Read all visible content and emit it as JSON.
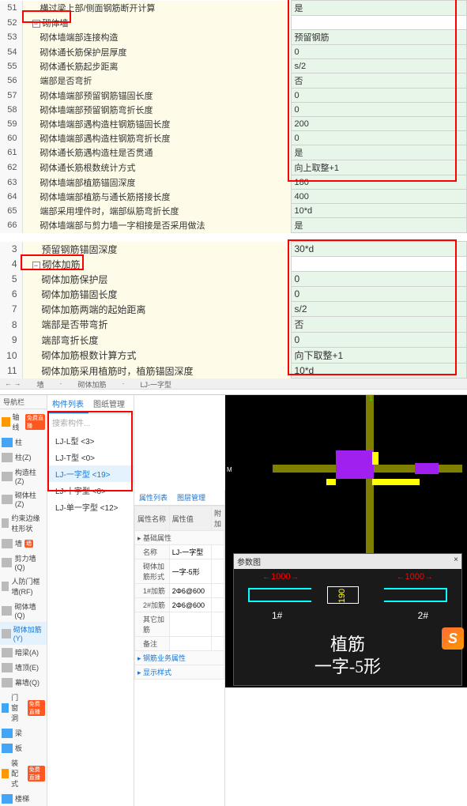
{
  "table1": {
    "title": "砌体墙",
    "rows": [
      {
        "n": "51",
        "l": "横过梁上部/侧面钢筋断开计算",
        "v": "是"
      },
      {
        "n": "52",
        "l": "砌体墙",
        "v": "",
        "hdr": true
      },
      {
        "n": "53",
        "l": "砌体墙端部连接构造",
        "v": "预留钢筋"
      },
      {
        "n": "54",
        "l": "砌体通长筋保护层厚度",
        "v": "0"
      },
      {
        "n": "55",
        "l": "砌体通长筋起步距离",
        "v": "s/2"
      },
      {
        "n": "56",
        "l": "端部是否弯折",
        "v": "否"
      },
      {
        "n": "57",
        "l": "砌体墙端部预留钢筋锚固长度",
        "v": "0"
      },
      {
        "n": "58",
        "l": "砌体墙端部预留钢筋弯折长度",
        "v": "0"
      },
      {
        "n": "59",
        "l": "砌体墙端部遇构造柱钢筋锚固长度",
        "v": "200"
      },
      {
        "n": "60",
        "l": "砌体墙端部遇构造柱钢筋弯折长度",
        "v": "0"
      },
      {
        "n": "61",
        "l": "砌体通长筋遇构造柱是否贯通",
        "v": "是"
      },
      {
        "n": "62",
        "l": "砌体通长筋根数统计方式",
        "v": "向上取整+1"
      },
      {
        "n": "63",
        "l": "砌体墙端部植筋锚固深度",
        "v": "180"
      },
      {
        "n": "64",
        "l": "砌体墙端部植筋与通长筋搭接长度",
        "v": "400"
      },
      {
        "n": "65",
        "l": "端部采用埋件时，端部纵筋弯折长度",
        "v": "10*d"
      },
      {
        "n": "66",
        "l": "砌体墙端部与剪力墙一字相接是否采用做法",
        "v": "是"
      }
    ]
  },
  "table2": {
    "title": "砌体加筋",
    "rows": [
      {
        "n": "3",
        "l": "预留钢筋锚固深度",
        "v": "30*d"
      },
      {
        "n": "4",
        "l": "砌体加筋",
        "v": "",
        "hdr": true
      },
      {
        "n": "5",
        "l": "砌体加筋保护层",
        "v": "0"
      },
      {
        "n": "6",
        "l": "砌体加筋锚固长度",
        "v": "0"
      },
      {
        "n": "7",
        "l": "砌体加筋两端的起始距离",
        "v": "s/2"
      },
      {
        "n": "8",
        "l": "端部是否带弯折",
        "v": "否"
      },
      {
        "n": "9",
        "l": "端部弯折长度",
        "v": "0"
      },
      {
        "n": "10",
        "l": "砌体加筋根数计算方式",
        "v": "向下取整+1"
      },
      {
        "n": "11",
        "l": "砌体加筋采用植筋时，植筋锚固深度",
        "v": "10*d"
      }
    ]
  },
  "topbar": {
    "a": "墙",
    "b": "砌体加筋",
    "c": "LJ-一字型"
  },
  "nav": {
    "hdr": "导航栏",
    "items": [
      {
        "l": "轴线",
        "c": "orange",
        "badge": "免费直播"
      },
      {
        "l": "柱",
        "c": "blue"
      },
      {
        "l": "柱(Z)",
        "c": "grey"
      },
      {
        "l": "构造柱(Z)",
        "c": "grey"
      },
      {
        "l": "砌体柱(Z)",
        "c": "grey"
      },
      {
        "l": "约束边缘柱形状",
        "c": "grey"
      },
      {
        "l": "墙",
        "c": "grey",
        "sel": true,
        "badge": "墙"
      },
      {
        "l": "剪力墙(Q)",
        "c": "grey"
      },
      {
        "l": "人防门框墙(RF)",
        "c": "grey"
      },
      {
        "l": "砌体墙(Q)",
        "c": "grey"
      },
      {
        "l": "砌体加筋(Y)",
        "c": "grey",
        "sel2": true
      },
      {
        "l": "暗梁(A)",
        "c": "grey"
      },
      {
        "l": "墙顶(E)",
        "c": "grey"
      },
      {
        "l": "幕墙(Q)",
        "c": "grey"
      },
      {
        "l": "门窗洞",
        "c": "blue",
        "badge": "免费直播"
      },
      {
        "l": "梁",
        "c": "blue"
      },
      {
        "l": "板",
        "c": "blue"
      },
      {
        "l": "装配式",
        "c": "orange",
        "badge": "免费直播"
      },
      {
        "l": "楼梯",
        "c": "blue"
      }
    ]
  },
  "mid": {
    "tabs": [
      "构件列表",
      "图纸管理"
    ],
    "search": "搜索构件...",
    "items": [
      {
        "l": "LJ-L型 <3>"
      },
      {
        "l": "LJ-T型 <0>"
      },
      {
        "l": "LJ-一字型 <19>",
        "sel": true
      },
      {
        "l": "LJ-十字型 <0>"
      },
      {
        "l": "LJ-单一字型 <12>"
      }
    ]
  },
  "prop": {
    "tabs": [
      "属性列表",
      "图层管理"
    ],
    "cols": [
      "属性名称",
      "属性值",
      "附加"
    ],
    "rows": [
      {
        "n": "基础属性",
        "v": "",
        "hdr": true
      },
      {
        "n": "名称",
        "v": "LJ-一字型"
      },
      {
        "n": "砌体加筋形式",
        "v": "一字-5形"
      },
      {
        "n": "1#加筋",
        "v": "2Φ6@600"
      },
      {
        "n": "2#加筋",
        "v": "2Φ6@600"
      },
      {
        "n": "其它加筋",
        "v": ""
      },
      {
        "n": "备注",
        "v": ""
      },
      {
        "n": "钢筋业务属性",
        "v": "",
        "hdr": true,
        "link": true
      },
      {
        "n": "显示样式",
        "v": "",
        "hdr": true,
        "link": true
      }
    ]
  },
  "cad": {
    "vnum": "1",
    "hlabel": "M"
  },
  "param": {
    "title": "参数图",
    "dim1": "1000",
    "dim2": "1000",
    "dim3": "190",
    "l1": "1#",
    "l2": "2#",
    "t1": "植筋",
    "t2": "一字-5形"
  },
  "slogo": "S"
}
